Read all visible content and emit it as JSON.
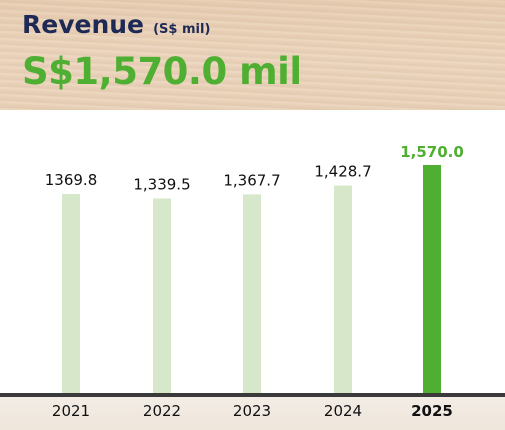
{
  "header": {
    "title": "Revenue",
    "unit": "(S$ mil)",
    "headline": "S$1,570.0 mil"
  },
  "colors": {
    "bar_past": "#d6e8c9",
    "bar_current": "#4faf32",
    "label_current": "#4faf32",
    "label_past": "#111111",
    "baseline": "#3a3a3a",
    "title": "#1e2a55"
  },
  "chart_data": {
    "type": "bar",
    "categories": [
      "2021",
      "2022",
      "2023",
      "2024",
      "2025"
    ],
    "values": [
      1369.8,
      1339.5,
      1367.7,
      1428.7,
      1570.0
    ],
    "data_labels": [
      "1369.8",
      "1,339.5",
      "1,367.7",
      "1,428.7",
      "1,570.0"
    ],
    "highlight_index": 4,
    "ylim": [
      0,
      1570.0
    ],
    "grid": false,
    "legend": "none"
  }
}
